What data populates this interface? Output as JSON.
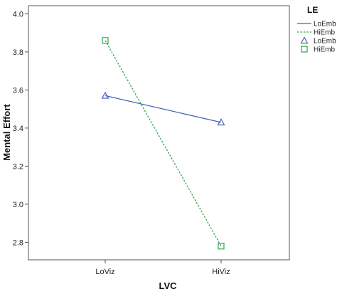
{
  "chart_data": {
    "type": "line",
    "categories": [
      "LoViz",
      "HiViz"
    ],
    "xlabel": "LVC",
    "ylabel": "Mental Effort",
    "ylim": [
      2.7,
      4.0
    ],
    "yticks": [
      "2.8",
      "3.0",
      "3.2",
      "3.4",
      "3.6",
      "3.8",
      "4.0"
    ],
    "grid": false,
    "legend": {
      "title": "LE",
      "placement": "right",
      "entries": [
        {
          "label": "LoEmb",
          "kind": "line",
          "color": "#4a62b8",
          "dash": "solid"
        },
        {
          "label": "HiEmb",
          "kind": "line",
          "color": "#2aa84a",
          "dash": "dotted"
        },
        {
          "label": "LoEmb",
          "kind": "marker",
          "color": "#4a62b8",
          "marker": "triangle"
        },
        {
          "label": "HiEmb",
          "kind": "marker",
          "color": "#2aa84a",
          "marker": "square"
        }
      ]
    },
    "series": [
      {
        "name": "LoEmb",
        "values": [
          3.57,
          3.43
        ],
        "color": "#4a62b8",
        "dash": "solid",
        "marker": "triangle"
      },
      {
        "name": "HiEmb",
        "values": [
          3.86,
          2.78
        ],
        "color": "#2aa84a",
        "dash": "dotted",
        "marker": "square"
      }
    ]
  }
}
